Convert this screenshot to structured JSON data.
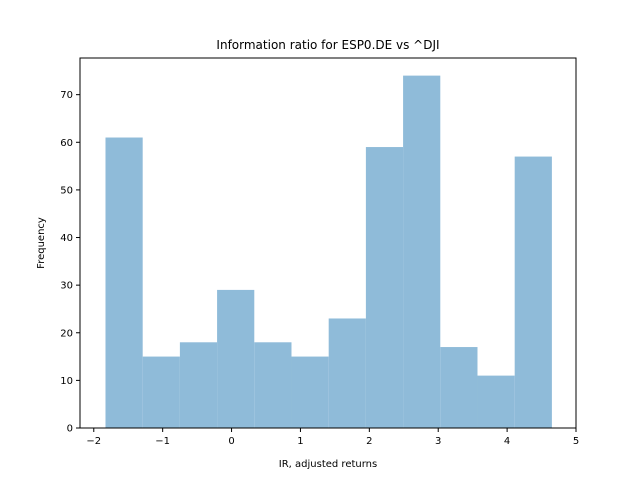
{
  "chart_data": {
    "type": "bar",
    "title": "Information ratio for ESP0.DE vs ^DJI",
    "xlabel": "IR, adjusted returns",
    "ylabel": "Frequency",
    "xlim": [
      -2.2,
      5.0
    ],
    "ylim": [
      0,
      77.7
    ],
    "xticks": [
      -2,
      -1,
      0,
      1,
      2,
      3,
      4,
      5
    ],
    "xtick_labels": [
      "−2",
      "−1",
      "0",
      "1",
      "2",
      "3",
      "4",
      "5"
    ],
    "yticks": [
      0,
      10,
      20,
      30,
      40,
      50,
      60,
      70
    ],
    "ytick_labels": [
      "0",
      "10",
      "20",
      "30",
      "40",
      "50",
      "60",
      "70"
    ],
    "bin_edges": [
      -1.83,
      -1.29,
      -0.75,
      -0.21,
      0.33,
      0.87,
      1.41,
      1.95,
      2.49,
      3.03,
      3.57,
      4.11,
      4.65
    ],
    "values": [
      61,
      15,
      18,
      29,
      18,
      15,
      23,
      59,
      74,
      17,
      11,
      57
    ],
    "bar_color": "#8fbbd9",
    "grid": false,
    "legend": "none"
  }
}
